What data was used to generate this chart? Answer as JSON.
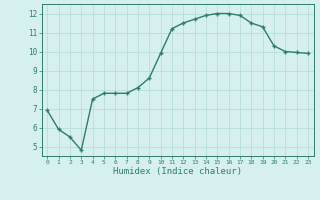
{
  "x": [
    0,
    1,
    2,
    3,
    4,
    5,
    6,
    7,
    8,
    9,
    10,
    11,
    12,
    13,
    14,
    15,
    16,
    17,
    18,
    19,
    20,
    21,
    22,
    23
  ],
  "y": [
    6.9,
    5.9,
    5.5,
    4.8,
    7.5,
    7.8,
    7.8,
    7.8,
    8.1,
    8.6,
    9.9,
    11.2,
    11.5,
    11.7,
    11.9,
    12.0,
    12.0,
    11.9,
    11.5,
    11.3,
    10.3,
    10.0,
    9.95,
    9.9
  ],
  "line_color": "#2e7d6e",
  "marker": "+",
  "bg_color": "#d5f0ee",
  "grid_color": "#b8deda",
  "xlabel": "Humidex (Indice chaleur)",
  "ylim": [
    4.5,
    12.5
  ],
  "xlim": [
    -0.5,
    23.5
  ],
  "yticks": [
    5,
    6,
    7,
    8,
    9,
    10,
    11,
    12
  ],
  "xticks": [
    0,
    1,
    2,
    3,
    4,
    5,
    6,
    7,
    8,
    9,
    10,
    11,
    12,
    13,
    14,
    15,
    16,
    17,
    18,
    19,
    20,
    21,
    22,
    23
  ],
  "tick_color": "#2e7d6e",
  "label_color": "#2e7d6e",
  "linewidth": 1.0,
  "markersize": 3.5,
  "markeredgewidth": 1.0
}
